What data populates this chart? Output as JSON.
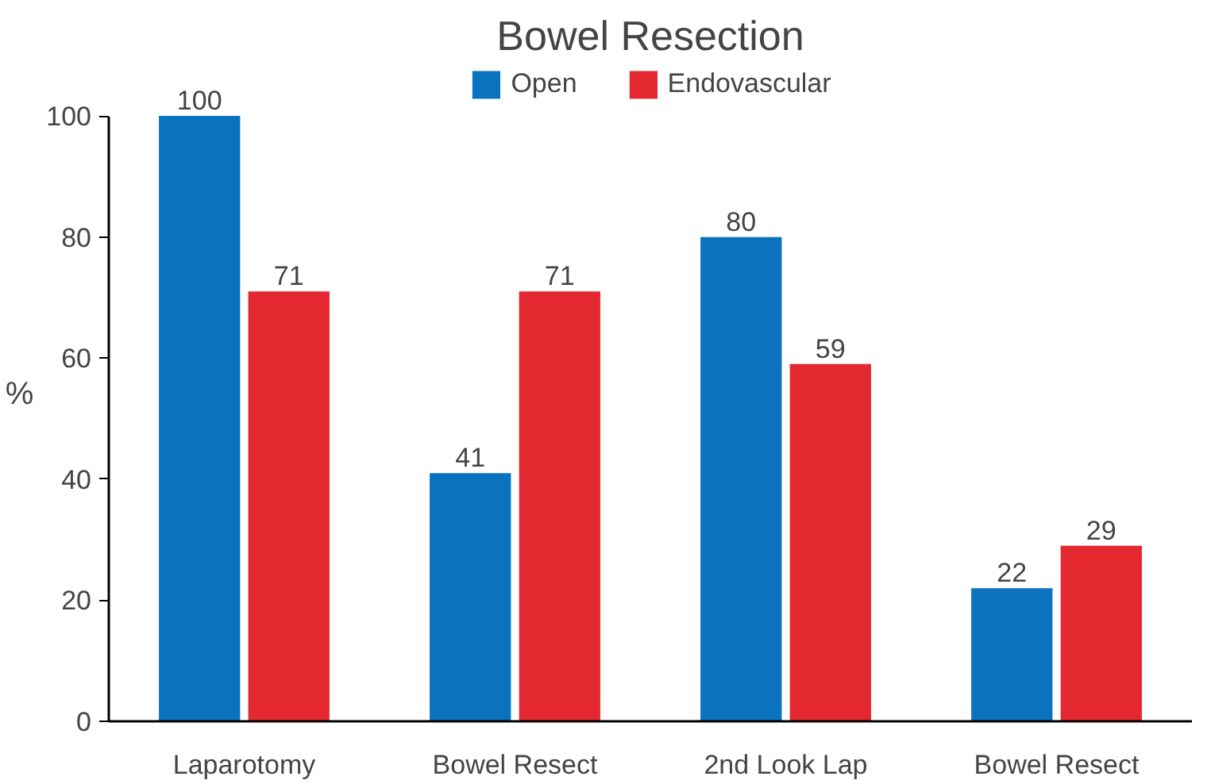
{
  "chart_data": {
    "type": "bar",
    "title": "Bowel Resection",
    "ylabel": "%",
    "categories": [
      "Laparotomy",
      "Bowel Resect",
      "2nd Look Lap",
      "Bowel Resect"
    ],
    "series": [
      {
        "name": "Open",
        "color": "#0b72bf",
        "values": [
          100,
          41,
          80,
          22
        ]
      },
      {
        "name": "Endovascular",
        "color": "#e3292f",
        "values": [
          71,
          71,
          59,
          29
        ]
      }
    ],
    "ylim": [
      0,
      100
    ],
    "yticks": [
      0,
      20,
      40,
      60,
      80,
      100
    ],
    "grid": false,
    "legend": "top",
    "data_labels": true
  }
}
